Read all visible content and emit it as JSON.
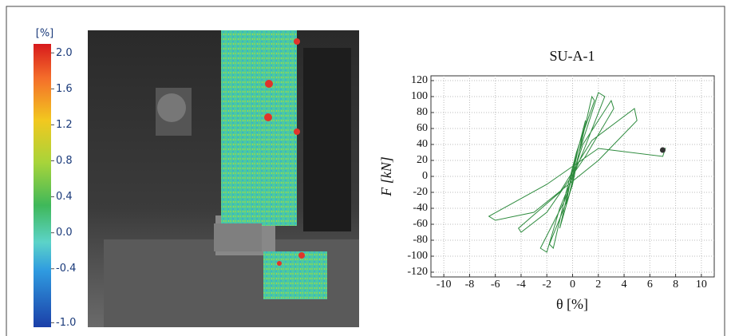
{
  "chart_data": [
    {
      "type": "colorbar",
      "title": "[%]",
      "ylim": [
        -1.05,
        2.1
      ],
      "yticks": [
        {
          "value": 2,
          "label": "2.0"
        },
        {
          "value": 1.6,
          "label": "1.6"
        },
        {
          "value": 1.2,
          "label": "1.2"
        },
        {
          "value": 0.8,
          "label": "0.8"
        },
        {
          "value": 0.4,
          "label": "0.4"
        },
        {
          "value": 0,
          "label": "0.0"
        },
        {
          "value": -0.4,
          "label": "-0.4"
        },
        {
          "value": -1,
          "label": "-1.0"
        }
      ]
    },
    {
      "type": "line",
      "title": "SU-A-1",
      "xlabel": "θ [%]",
      "ylabel": "F [kN]",
      "color": "#2e8b3e",
      "grid": true,
      "x": [
        0,
        0.5,
        0,
        -0.5,
        0,
        1,
        0.2,
        -1,
        -0.2,
        1.5,
        1.7,
        0.3,
        -0.5,
        -1.5,
        -1.8,
        -0.3,
        0.5,
        2,
        2.5,
        0.8,
        -1,
        -2,
        -2.5,
        -0.6,
        0.8,
        3,
        3.2,
        1,
        -2,
        -4,
        -4.2,
        -1,
        1.5,
        4.8,
        5,
        2,
        -3,
        -6,
        -6.5,
        -2,
        2,
        7,
        7.2,
        7
      ],
      "values": [
        0,
        40,
        10,
        -35,
        -10,
        70,
        20,
        -65,
        -20,
        100,
        95,
        30,
        -20,
        -90,
        -85,
        -25,
        30,
        105,
        100,
        30,
        -40,
        -95,
        -90,
        -30,
        40,
        95,
        85,
        25,
        -45,
        -70,
        -65,
        -20,
        45,
        85,
        70,
        20,
        -45,
        -55,
        -50,
        -10,
        35,
        25,
        35,
        33
      ],
      "xlim": [
        -11,
        11
      ],
      "xticks": [
        -10,
        -8,
        -6,
        -4,
        -2,
        0,
        2,
        4,
        6,
        8,
        10
      ],
      "ylim": [
        -126,
        126
      ],
      "yticks": [
        -120,
        -100,
        -80,
        -60,
        -40,
        -20,
        0,
        20,
        40,
        60,
        80,
        100,
        120
      ]
    }
  ]
}
